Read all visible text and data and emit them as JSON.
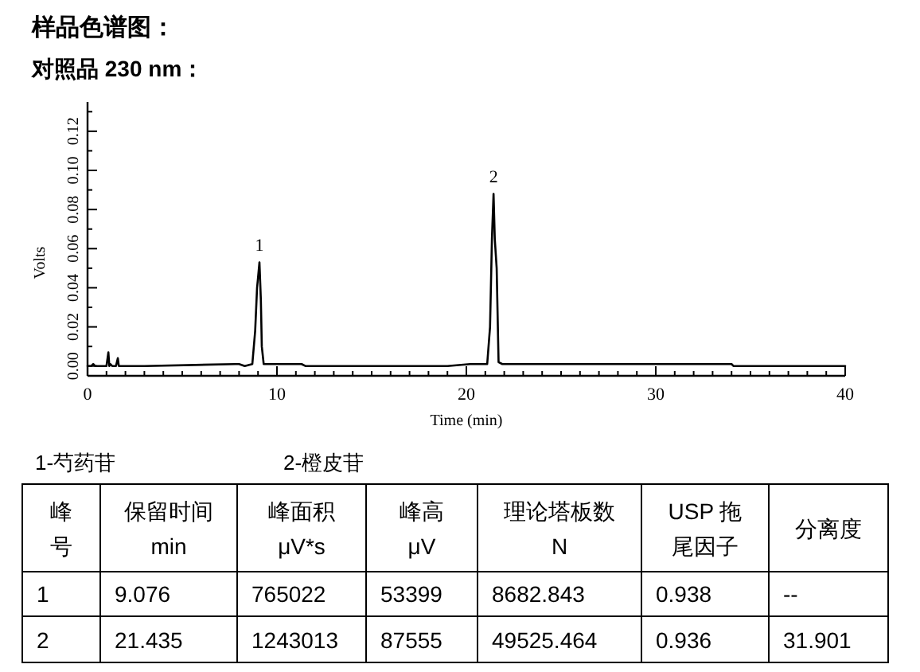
{
  "chart_data": [
    {
      "type": "line",
      "title": "样品色谱图：",
      "subtitle": "对照品 230 nm：",
      "xlabel": "Time (min)",
      "ylabel": "Volts",
      "xlim": [
        0,
        40
      ],
      "ylim": [
        -0.005,
        0.135
      ],
      "xticks": [
        0,
        {
          "value": 1,
          "label": null
        },
        {
          "value": 2,
          "label": null
        },
        {
          "value": 3,
          "label": null
        },
        {
          "value": 4,
          "label": null
        },
        {
          "value": 5,
          "label": null
        },
        {
          "value": 6,
          "label": null
        },
        {
          "value": 7,
          "label": null
        },
        {
          "value": 8,
          "label": null
        },
        {
          "value": 9,
          "label": null
        },
        10,
        {
          "value": 11,
          "label": null
        },
        {
          "value": 12,
          "label": null
        },
        {
          "value": 13,
          "label": null
        },
        {
          "value": 14,
          "label": null
        },
        {
          "value": 15,
          "label": null
        },
        {
          "value": 16,
          "label": null
        },
        {
          "value": 17,
          "label": null
        },
        {
          "value": 18,
          "label": null
        },
        {
          "value": 19,
          "label": null
        },
        20,
        {
          "value": 21,
          "label": null
        },
        {
          "value": 22,
          "label": null
        },
        {
          "value": 23,
          "label": null
        },
        {
          "value": 24,
          "label": null
        },
        {
          "value": 25,
          "label": null
        },
        {
          "value": 26,
          "label": null
        },
        {
          "value": 27,
          "label": null
        },
        {
          "value": 28,
          "label": null
        },
        {
          "value": 29,
          "label": null
        },
        30,
        {
          "value": 31,
          "label": null
        },
        {
          "value": 32,
          "label": null
        },
        {
          "value": 33,
          "label": null
        },
        {
          "value": 34,
          "label": null
        },
        {
          "value": 35,
          "label": null
        },
        {
          "value": 36,
          "label": null
        },
        {
          "value": 37,
          "label": null
        },
        {
          "value": 38,
          "label": null
        },
        {
          "value": 39,
          "label": null
        },
        40
      ],
      "yticks": [
        {
          "value": 0,
          "label": "0.00"
        },
        {
          "value": 0.01,
          "label": null
        },
        {
          "value": 0.02,
          "label": "0.02"
        },
        {
          "value": 0.03,
          "label": null
        },
        {
          "value": 0.04,
          "label": "0.04"
        },
        {
          "value": 0.05,
          "label": null
        },
        {
          "value": 0.06,
          "label": "0.06"
        },
        {
          "value": 0.07,
          "label": null
        },
        {
          "value": 0.08,
          "label": "0.08"
        },
        {
          "value": 0.09,
          "label": null
        },
        {
          "value": 0.1,
          "label": "0.10"
        },
        {
          "value": 0.11,
          "label": null
        },
        {
          "value": 0.12,
          "label": "0.12"
        },
        {
          "value": 0.13,
          "label": null
        }
      ],
      "marker": "none",
      "line_style": "solid",
      "series": [
        {
          "color": "#000000",
          "x": [
            0,
            0.2,
            0.3,
            0.4,
            1.0,
            1.1,
            1.15,
            1.2,
            1.3,
            1.5,
            1.6,
            1.65,
            1.7,
            3,
            7.8,
            8.0,
            8.3,
            8.7,
            8.85,
            8.95,
            9.0,
            9.076,
            9.15,
            9.2,
            9.3,
            9.5,
            11.3,
            11.5,
            11.7,
            14,
            19,
            20.2,
            21.1,
            21.25,
            21.35,
            21.435,
            21.5,
            21.6,
            21.7,
            21.9,
            23,
            33.0,
            33.1,
            34.0,
            34.1,
            40
          ],
          "values": [
            0,
            0,
            0.001,
            0,
            0,
            0.007,
            0,
            0.001,
            0,
            0,
            0.004,
            0,
            0,
            0,
            0.001,
            0.001,
            0,
            0.001,
            0.018,
            0.04,
            0.045,
            0.053,
            0.034,
            0.01,
            0.001,
            0.001,
            0.001,
            0,
            0,
            0,
            0,
            0.001,
            0.001,
            0.02,
            0.065,
            0.088,
            0.065,
            0.05,
            0.002,
            0.001,
            0.001,
            0.001,
            0.001,
            0.001,
            0,
            0
          ]
        }
      ],
      "annotations": [
        {
          "text": "1",
          "x": 9.076,
          "y": 0.053
        },
        {
          "text": "2",
          "x": 21.435,
          "y": 0.088
        }
      ]
    },
    {
      "type": "other",
      "annotations": [
        "1-芍药苷",
        "2-橙皮苷",
        "峰号",
        "保留时间\nmin",
        "峰面积\nμV*s",
        "峰高\nμV",
        "理论塔板数\nN",
        "USP 拖尾因子",
        "分离度",
        "1",
        "9.076",
        "765022",
        "53399",
        "8682.843",
        "0.938",
        "--",
        "2",
        "21.435",
        "1243013",
        "87555",
        "49525.464",
        "0.936",
        "31.901"
      ]
    }
  ]
}
